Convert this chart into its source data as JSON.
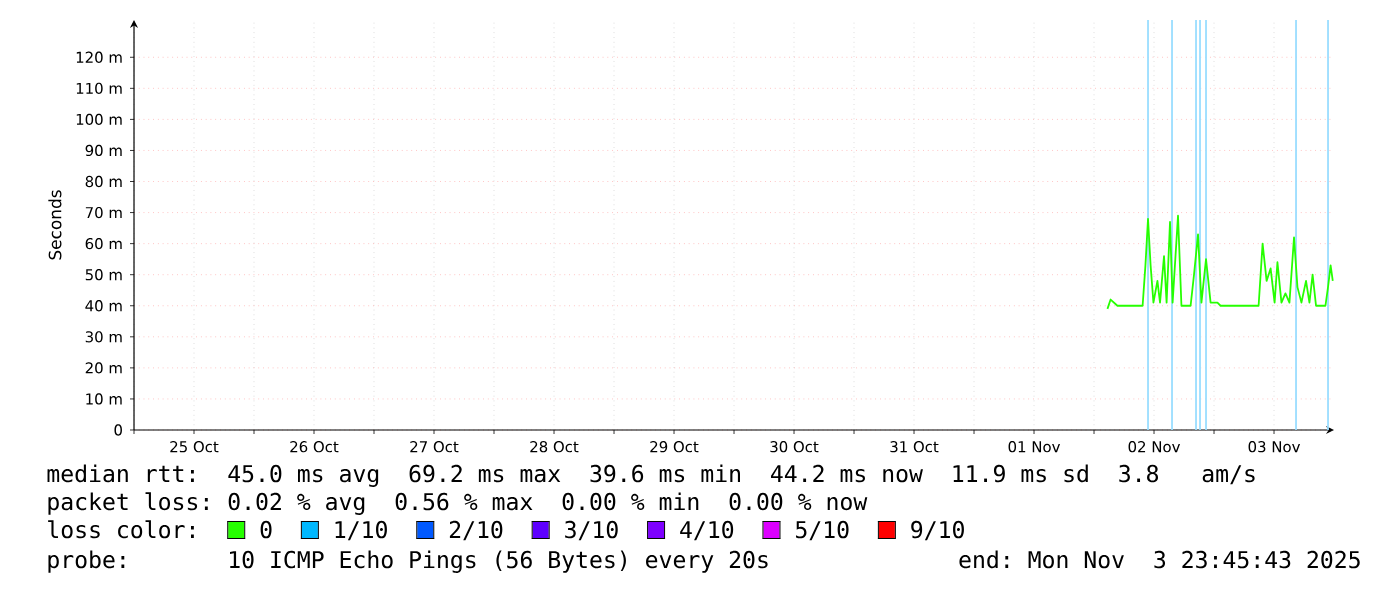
{
  "chart_data": {
    "type": "line",
    "ylabel": "Seconds",
    "xlim": [
      "2025-10-25T00:00",
      "2025-11-04T00:00"
    ],
    "xticks": [
      {
        "value": "2025-10-25T00:00",
        "label": null
      },
      {
        "value": "2025-10-25T12:00",
        "label": "25 Oct"
      },
      {
        "value": "2025-10-26T00:00",
        "label": null
      },
      {
        "value": "2025-10-26T12:00",
        "label": "26 Oct"
      },
      {
        "value": "2025-10-27T00:00",
        "label": null
      },
      {
        "value": "2025-10-27T12:00",
        "label": "27 Oct"
      },
      {
        "value": "2025-10-28T00:00",
        "label": null
      },
      {
        "value": "2025-10-28T12:00",
        "label": "28 Oct"
      },
      {
        "value": "2025-10-29T00:00",
        "label": null
      },
      {
        "value": "2025-10-29T12:00",
        "label": "29 Oct"
      },
      {
        "value": "2025-10-30T00:00",
        "label": null
      },
      {
        "value": "2025-10-30T12:00",
        "label": "30 Oct"
      },
      {
        "value": "2025-10-31T00:00",
        "label": null
      },
      {
        "value": "2025-10-31T12:00",
        "label": "31 Oct"
      },
      {
        "value": "2025-11-01T00:00",
        "label": null
      },
      {
        "value": "2025-11-01T12:00",
        "label": "01 Nov"
      },
      {
        "value": "2025-11-02T00:00",
        "label": null
      },
      {
        "value": "2025-11-02T12:00",
        "label": "02 Nov"
      },
      {
        "value": "2025-11-03T00:00",
        "label": null
      },
      {
        "value": "2025-11-03T12:00",
        "label": "03 Nov"
      }
    ],
    "ylim": [
      0,
      132
    ],
    "yticks": [
      0,
      {
        "value": 10,
        "label": "10 m"
      },
      {
        "value": 20,
        "label": "20 m"
      },
      {
        "value": 30,
        "label": "30 m"
      },
      {
        "value": 40,
        "label": "40 m"
      },
      {
        "value": 50,
        "label": "50 m"
      },
      {
        "value": 60,
        "label": "60 m"
      },
      {
        "value": 70,
        "label": "70 m"
      },
      {
        "value": 80,
        "label": "80 m"
      },
      {
        "value": 90,
        "label": "90 m"
      },
      {
        "value": 100,
        "label": "100 m"
      },
      {
        "value": 110,
        "label": "110 m"
      },
      {
        "value": 120,
        "label": "120 m"
      }
    ],
    "grid": true,
    "legend": "bottom",
    "legend_title": "loss color:",
    "marker": "none",
    "line_style": "solid",
    "series": [
      {
        "name": "0",
        "color": "#26ff00",
        "x": [
          "2025-11-02T02:41",
          "2025-11-02T03:19",
          "2025-11-02T04:41",
          "2025-11-02T09:43",
          "2025-11-02T10:17",
          "2025-11-02T10:48",
          "2025-11-02T11:19",
          "2025-11-02T11:53",
          "2025-11-02T12:41",
          "2025-11-02T13:12",
          "2025-11-02T14:00",
          "2025-11-02T14:31",
          "2025-11-02T15:12",
          "2025-11-02T15:43",
          "2025-11-02T16:48",
          "2025-11-02T17:29",
          "2025-11-02T19:19",
          "2025-11-02T20:00",
          "2025-11-02T20:48",
          "2025-11-02T21:29",
          "2025-11-02T22:24",
          "2025-11-02T23:19",
          "2025-11-03T00:41",
          "2025-11-03T01:19",
          "2025-11-03T08:55",
          "2025-11-03T09:43",
          "2025-11-03T10:31",
          "2025-11-03T11:19",
          "2025-11-03T12:07",
          "2025-11-03T12:41",
          "2025-11-03T13:29",
          "2025-11-03T14:17",
          "2025-11-03T15:05",
          "2025-11-03T16:00",
          "2025-11-03T16:41",
          "2025-11-03T17:29",
          "2025-11-03T18:24",
          "2025-11-03T19:05",
          "2025-11-03T19:43",
          "2025-11-03T20:24",
          "2025-11-03T22:17",
          "2025-11-03T22:48",
          "2025-11-03T23:19",
          "2025-11-03T23:45"
        ],
        "values": [
          39,
          42,
          40,
          40,
          53,
          68,
          53,
          41,
          48,
          41,
          56,
          41,
          67,
          41,
          69,
          40,
          40,
          50,
          63,
          41,
          55,
          41,
          41,
          40,
          40,
          60,
          48,
          52,
          41,
          54,
          41,
          44,
          41,
          62,
          46,
          41,
          48,
          41,
          50,
          40,
          40,
          46,
          53,
          48
        ]
      },
      {
        "name": "1/10",
        "color": "#00b8ff"
      },
      {
        "name": "2/10",
        "color": "#0059ff"
      },
      {
        "name": "3/10",
        "color": "#5e00ff"
      },
      {
        "name": "4/10",
        "color": "#7e00ff"
      },
      {
        "name": "5/10",
        "color": "#dd00ff"
      },
      {
        "name": "9/10",
        "color": "#ff0000"
      }
    ],
    "ref_lines": [
      {
        "axis": "x",
        "value": "2025-11-02T10:48",
        "color": "#99ddff"
      },
      {
        "axis": "x",
        "value": "2025-11-02T15:36",
        "color": "#99ddff"
      },
      {
        "axis": "x",
        "value": "2025-11-02T20:24",
        "color": "#99ddff"
      },
      {
        "axis": "x",
        "value": "2025-11-02T21:12",
        "color": "#99ddff"
      },
      {
        "axis": "x",
        "value": "2025-11-02T22:24",
        "color": "#99ddff"
      },
      {
        "axis": "x",
        "value": "2025-11-03T16:24",
        "color": "#99ddff"
      },
      {
        "axis": "x",
        "value": "2025-11-03T22:48",
        "color": "#99ddff"
      }
    ],
    "annotations": [
      "median rtt:  45.0 ms avg  69.2 ms max  39.6 ms min  44.2 ms now  11.9 ms sd  3.8   am/s",
      "packet loss: 0.02 % avg  0.56 % max  0.00 % min  0.00 % now",
      "probe:       10 ICMP Echo Pings (56 Bytes) every 20s",
      "end: Mon Nov  3 23:45:43 2025"
    ]
  }
}
